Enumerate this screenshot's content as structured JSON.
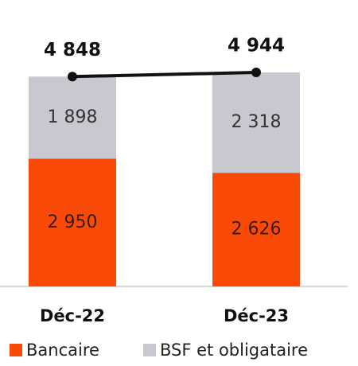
{
  "chart_data": {
    "type": "bar",
    "stacked": true,
    "categories": [
      "Déc-22",
      "Déc-23"
    ],
    "series": [
      {
        "name": "Bancaire",
        "color": "#f94a07",
        "values": [
          2950,
          2626
        ],
        "value_labels": [
          "2 950",
          "2 626"
        ]
      },
      {
        "name": "BSF et obligataire",
        "color": "#c8c8d0",
        "values": [
          1898,
          2318
        ],
        "value_labels": [
          "1 898",
          "2 318"
        ]
      }
    ],
    "totals": {
      "values": [
        4848,
        4944
      ],
      "value_labels": [
        "4 848",
        "4 944"
      ],
      "color": "#111111"
    },
    "ylim": [
      0,
      6250
    ],
    "legend": "bottom"
  }
}
